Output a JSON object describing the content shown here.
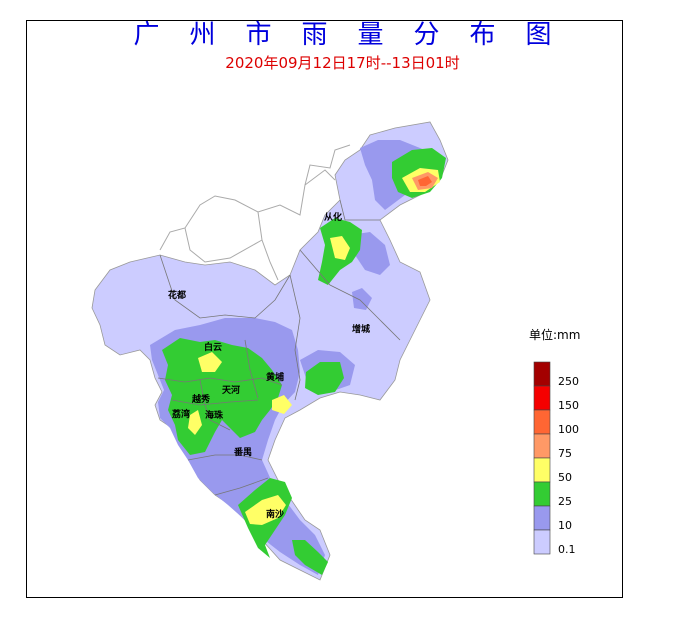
{
  "title": "广州市雨量分布图",
  "subtitle": "2020年09月12日17时--13日01时",
  "unit_label": "单位:mm",
  "places": {
    "conghua": "从化",
    "huadu": "花都",
    "zengcheng": "增城",
    "baiyun": "白云",
    "huangpu": "黄埔",
    "tianhe": "天河",
    "yuexiu": "越秀",
    "liwan": "荔湾",
    "haizhu": "海珠",
    "panyu": "番禺",
    "nansha": "南沙"
  },
  "legend": {
    "labels": [
      "250",
      "150",
      "100",
      "75",
      "50",
      "25",
      "10",
      "0.1"
    ],
    "colors": [
      "#a30000",
      "#f50000",
      "#ff6633",
      "#ff9966",
      "#ffff66",
      "#33cc33",
      "#9999ee",
      "#ccccff"
    ]
  },
  "colors": {
    "title": "#0000dd",
    "subtitle": "#dd0000",
    "rain_light": "#ccccff",
    "rain_10": "#9999ee",
    "rain_25": "#33cc33",
    "rain_50": "#ffff66",
    "rain_75": "#ff9966",
    "rain_100": "#ff6633"
  }
}
